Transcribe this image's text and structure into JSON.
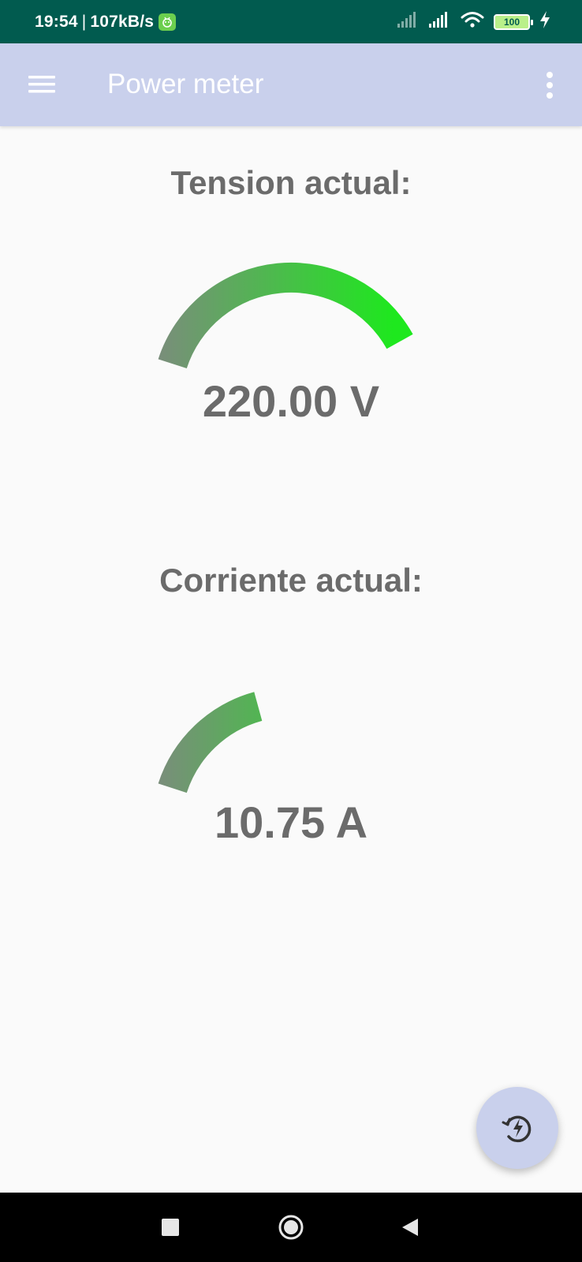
{
  "status_bar": {
    "time": "19:54",
    "separator": "|",
    "net_speed": "107kB/s",
    "battery_level": "100",
    "icons": [
      "app-notification-icon",
      "signal-icon",
      "signal-icon",
      "wifi-icon",
      "battery-icon",
      "charging-icon"
    ]
  },
  "app_bar": {
    "title": "Power meter",
    "menu_icon": "hamburger-menu-icon",
    "overflow_icon": "more-vert-icon"
  },
  "gauges": [
    {
      "title": "Tension actual:",
      "value_text": "220.00 V",
      "fill_fraction": 0.82
    },
    {
      "title": "Corriente actual:",
      "value_text": "10.75 A",
      "fill_fraction": 0.35
    }
  ],
  "fab": {
    "icon": "power-refresh-icon"
  },
  "nav_bar": {
    "icons": [
      "recents-icon",
      "home-icon",
      "back-icon"
    ]
  },
  "colors": {
    "status_bar": "#015b4f",
    "app_bar": "#c9d0ec",
    "gauge_start": "#7d8a7e",
    "gauge_end": "#1ee81e",
    "text": "#6b6b6b",
    "background": "#fafafa"
  }
}
